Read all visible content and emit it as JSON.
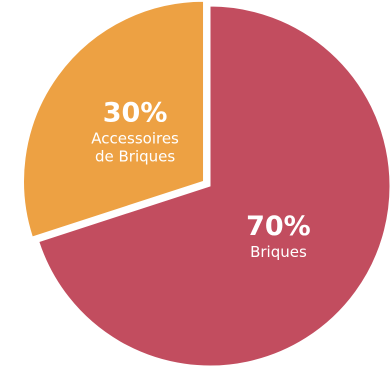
{
  "chart_data": {
    "type": "pie",
    "slices": [
      {
        "value": 70,
        "percent_label": "70%",
        "label_lines": [
          "Briques"
        ],
        "color": "#c24d5f"
      },
      {
        "value": 30,
        "percent_label": "30%",
        "label_lines": [
          "Accessoires",
          "de Briques"
        ],
        "color": "#eda143"
      }
    ],
    "start_angle_deg": 0,
    "direction": "clockwise",
    "exploded_slice": 1,
    "legend": "none"
  }
}
